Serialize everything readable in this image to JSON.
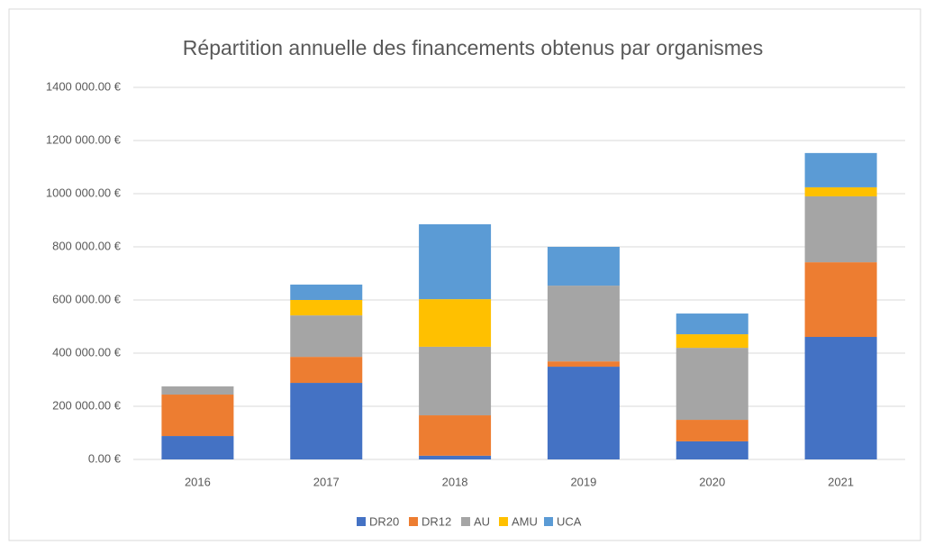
{
  "chart_data": {
    "type": "stacked_bar",
    "title": "Répartition annuelle des financements obtenus par organismes",
    "categories": [
      "2016",
      "2017",
      "2018",
      "2019",
      "2020",
      "2021"
    ],
    "series": [
      {
        "name": "DR20",
        "color": "#4472c4",
        "values": [
          88000,
          288000,
          14000,
          349000,
          68000,
          461000
        ]
      },
      {
        "name": "DR12",
        "color": "#ed7d31",
        "values": [
          156000,
          98000,
          152000,
          20000,
          81000,
          281000
        ]
      },
      {
        "name": "AU",
        "color": "#a5a5a5",
        "values": [
          31000,
          156000,
          258000,
          285000,
          271000,
          248000
        ]
      },
      {
        "name": "AMU",
        "color": "#ffc000",
        "values": [
          0,
          58000,
          179000,
          0,
          51000,
          34000
        ]
      },
      {
        "name": "UCA",
        "color": "#5b9bd5",
        "values": [
          0,
          58000,
          282000,
          146000,
          78000,
          129000
        ]
      }
    ],
    "ylim": [
      0,
      1400000
    ],
    "yticks": [
      {
        "value": 0,
        "label": "0.00 €"
      },
      {
        "value": 200000,
        "label": "200 000.00 €"
      },
      {
        "value": 400000,
        "label": "400 000.00 €"
      },
      {
        "value": 600000,
        "label": "600 000.00 €"
      },
      {
        "value": 800000,
        "label": "800 000.00 €"
      },
      {
        "value": 1000000,
        "label": "1000 000.00 €"
      },
      {
        "value": 1200000,
        "label": "1200 000.00 €"
      },
      {
        "value": 1400000,
        "label": "1400 000.00 €"
      }
    ],
    "grid": true,
    "legend": "bottom"
  }
}
